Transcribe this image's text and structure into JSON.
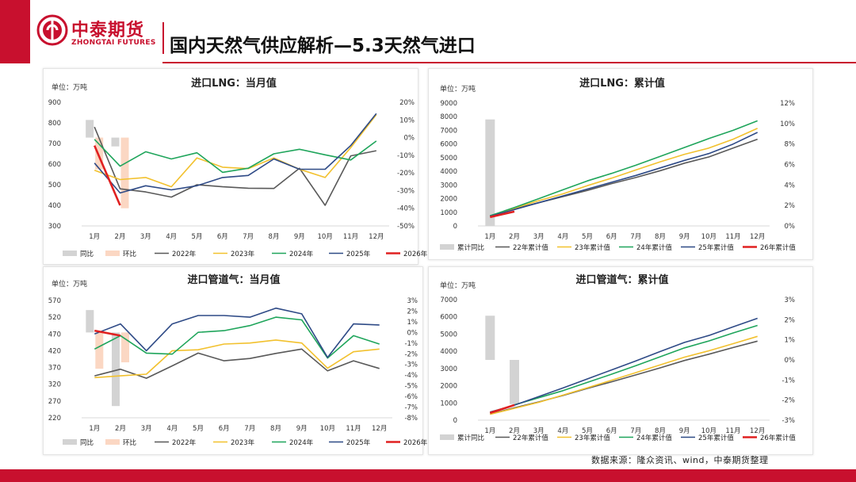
{
  "brand": {
    "name_cn": "中泰期货",
    "name_en": "ZHONGTAI FUTURES"
  },
  "page_title": "国内天然气供应解析—5.3天然气进口",
  "source_note": "数据来源：隆众资讯、wind，中泰期货整理",
  "colors": {
    "brand_red": "#c8102e",
    "y2022": "#595959",
    "y2023": "#f2c12e",
    "y2024": "#1fa55b",
    "y2025": "#2e4a86",
    "y2026": "#e02020",
    "yoy": "#d3d3d3",
    "mom": "#fbd7c3"
  },
  "chart_data": [
    {
      "type": "bar+line",
      "title": "进口LNG：当月值",
      "unit": "单位：万吨",
      "categories": [
        "1月",
        "2月",
        "3月",
        "4月",
        "5月",
        "6月",
        "7月",
        "8月",
        "9月",
        "10月",
        "11月",
        "12月"
      ],
      "ylim": [
        300,
        900
      ],
      "yticks": [
        "300",
        "400",
        "500",
        "600",
        "700",
        "800",
        "900"
      ],
      "y2lim": [
        -50,
        20
      ],
      "y2ticks": [
        "-50%",
        "-40%",
        "-30%",
        "-20%",
        "-10%",
        "0%",
        "10%",
        "20%"
      ],
      "bars": [
        {
          "name": "同比",
          "values": [
            10,
            -5,
            null,
            null,
            null,
            null,
            null,
            null,
            null,
            null,
            null,
            null
          ]
        },
        {
          "name": "环比",
          "values": [
            -18,
            -40,
            null,
            null,
            null,
            null,
            null,
            null,
            null,
            null,
            null,
            null
          ]
        }
      ],
      "series": [
        {
          "name": "2022年",
          "values": [
            780,
            480,
            465,
            440,
            500,
            490,
            483,
            482,
            580,
            400,
            640,
            665
          ]
        },
        {
          "name": "2023年",
          "values": [
            570,
            525,
            535,
            490,
            630,
            585,
            578,
            630,
            575,
            535,
            680,
            840
          ]
        },
        {
          "name": "2024年",
          "values": [
            720,
            590,
            660,
            625,
            655,
            560,
            580,
            650,
            672,
            645,
            620,
            712
          ]
        },
        {
          "name": "2025年",
          "values": [
            605,
            460,
            495,
            475,
            495,
            535,
            545,
            625,
            575,
            575,
            690,
            845
          ]
        },
        {
          "name": "2026年",
          "values": [
            690,
            400,
            null,
            null,
            null,
            null,
            null,
            null,
            null,
            null,
            null,
            null
          ]
        }
      ]
    },
    {
      "type": "bar+line",
      "title": "进口LNG：累计值",
      "unit": "单位：万吨",
      "categories": [
        "1月",
        "2月",
        "3月",
        "4月",
        "5月",
        "6月",
        "7月",
        "8月",
        "9月",
        "10月",
        "11月",
        "12月"
      ],
      "ylim": [
        0,
        9000
      ],
      "yticks": [
        "0",
        "1000",
        "2000",
        "3000",
        "4000",
        "5000",
        "6000",
        "7000",
        "8000",
        "9000"
      ],
      "y2lim": [
        0,
        12
      ],
      "y2ticks": [
        "0%",
        "2%",
        "4%",
        "6%",
        "8%",
        "10%",
        "12%"
      ],
      "bars": [
        {
          "name": "累计同比",
          "values": [
            10.4,
            null,
            null,
            null,
            null,
            null,
            null,
            null,
            null,
            null,
            null,
            null
          ]
        }
      ],
      "series": [
        {
          "name": "22年累计值",
          "values": [
            750,
            1250,
            1700,
            2150,
            2600,
            3100,
            3550,
            4050,
            4600,
            5050,
            5700,
            6350
          ]
        },
        {
          "name": "23年累计值",
          "values": [
            700,
            1300,
            1850,
            2350,
            2950,
            3500,
            4100,
            4700,
            5250,
            5700,
            6350,
            7150
          ]
        },
        {
          "name": "24年累计值",
          "values": [
            750,
            1350,
            2000,
            2650,
            3300,
            3850,
            4450,
            5100,
            5750,
            6400,
            7000,
            7700
          ]
        },
        {
          "name": "25年累计值",
          "values": [
            700,
            1200,
            1700,
            2200,
            2700,
            3200,
            3700,
            4250,
            4800,
            5300,
            6000,
            6850
          ]
        },
        {
          "name": "26年累计值",
          "values": [
            650,
            1050,
            null,
            null,
            null,
            null,
            null,
            null,
            null,
            null,
            null,
            null
          ]
        }
      ]
    },
    {
      "type": "bar+line",
      "title": "进口管道气：当月值",
      "unit": "单位：万吨",
      "categories": [
        "1月",
        "2月",
        "3月",
        "4月",
        "5月",
        "6月",
        "7月",
        "8月",
        "9月",
        "10月",
        "11月",
        "12月"
      ],
      "ylim": [
        220,
        570
      ],
      "yticks": [
        "220",
        "270",
        "320",
        "370",
        "420",
        "470",
        "520",
        "570"
      ],
      "y2lim": [
        -8,
        3
      ],
      "y2ticks": [
        "-8%",
        "-7%",
        "-6%",
        "-5%",
        "-4%",
        "-3%",
        "-2%",
        "-1%",
        "0%",
        "1%",
        "2%",
        "3%"
      ],
      "bars": [
        {
          "name": "同比",
          "values": [
            2.1,
            -6.9,
            null,
            null,
            null,
            null,
            null,
            null,
            null,
            null,
            null,
            null
          ]
        },
        {
          "name": "环比",
          "values": [
            -3.4,
            -2.8,
            null,
            null,
            null,
            null,
            null,
            null,
            null,
            null,
            null,
            null
          ]
        }
      ],
      "series": [
        {
          "name": "2022年",
          "values": [
            345,
            365,
            338,
            375,
            413,
            390,
            397,
            412,
            425,
            360,
            390,
            367
          ]
        },
        {
          "name": "2023年",
          "values": [
            340,
            345,
            350,
            420,
            423,
            440,
            443,
            452,
            443,
            368,
            417,
            425
          ]
        },
        {
          "name": "2024年",
          "values": [
            425,
            465,
            413,
            410,
            475,
            480,
            495,
            520,
            512,
            398,
            465,
            440
          ]
        },
        {
          "name": "2025年",
          "values": [
            470,
            500,
            420,
            500,
            525,
            525,
            520,
            547,
            530,
            400,
            500,
            497
          ]
        },
        {
          "name": "2026年",
          "values": [
            480,
            465,
            null,
            null,
            null,
            null,
            null,
            null,
            null,
            null,
            null,
            null
          ]
        }
      ]
    },
    {
      "type": "bar+line",
      "title": "进口管道气：累计值",
      "unit": "单位：万吨",
      "categories": [
        "1月",
        "2月",
        "3月",
        "4月",
        "5月",
        "6月",
        "7月",
        "8月",
        "9月",
        "10月",
        "11月",
        "12月"
      ],
      "ylim": [
        0,
        7000
      ],
      "yticks": [
        "0",
        "1000",
        "2000",
        "3000",
        "4000",
        "5000",
        "6000",
        "7000"
      ],
      "y2lim": [
        -3,
        3
      ],
      "y2ticks": [
        "-3%",
        "-2%",
        "-1%",
        "0%",
        "1%",
        "2%",
        "3%"
      ],
      "bars": [
        {
          "name": "累计同比",
          "values": [
            2.2,
            -2.2,
            null,
            null,
            null,
            null,
            null,
            null,
            null,
            null,
            null,
            null
          ]
        }
      ],
      "series": [
        {
          "name": "22年累计值",
          "values": [
            350,
            720,
            1060,
            1430,
            1840,
            2230,
            2630,
            3040,
            3470,
            3830,
            4220,
            4590
          ]
        },
        {
          "name": "23年累计值",
          "values": [
            340,
            685,
            1035,
            1455,
            1880,
            2320,
            2765,
            3215,
            3660,
            4030,
            4445,
            4870
          ]
        },
        {
          "name": "24年累计值",
          "values": [
            425,
            890,
            1305,
            1715,
            2190,
            2670,
            3165,
            3685,
            4200,
            4600,
            5065,
            5505
          ]
        },
        {
          "name": "25年累计值",
          "values": [
            470,
            870,
            1370,
            1870,
            2395,
            2920,
            3440,
            3990,
            4520,
            4920,
            5420,
            5917
          ]
        },
        {
          "name": "26年累计值",
          "values": [
            420,
            880,
            null,
            null,
            null,
            null,
            null,
            null,
            null,
            null,
            null,
            null
          ]
        }
      ]
    }
  ]
}
